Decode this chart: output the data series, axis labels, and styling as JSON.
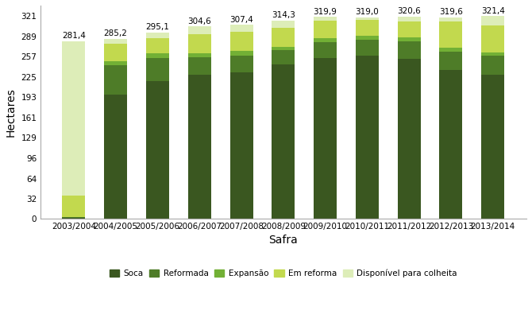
{
  "categories": [
    "2003/2004",
    "2004/2005",
    "2005/2006",
    "2006/2007",
    "2007/2008",
    "2008/2009",
    "2009/2010",
    "2010/2011",
    "2011/2012",
    "2012/2013",
    "2013/2014"
  ],
  "totals": [
    281.4,
    285.2,
    295.1,
    304.6,
    307.4,
    314.3,
    319.9,
    319.0,
    320.6,
    319.6,
    321.4
  ],
  "soca": [
    2.0,
    197.0,
    218.0,
    229.0,
    232.0,
    245.0,
    255.0,
    258.0,
    254.0,
    236.0,
    228.0
  ],
  "reformada": [
    0.5,
    47.0,
    37.0,
    27.0,
    27.0,
    22.0,
    25.0,
    26.0,
    27.0,
    29.0,
    30.0
  ],
  "expansao": [
    0.5,
    6.0,
    7.0,
    7.0,
    7.0,
    6.0,
    6.0,
    6.0,
    6.0,
    6.0,
    6.0
  ],
  "em_reforma": [
    34.0,
    27.5,
    24.5,
    30.0,
    30.0,
    30.0,
    28.0,
    25.0,
    26.0,
    42.0,
    42.0
  ],
  "disponivel": [
    244.4,
    7.7,
    8.6,
    11.6,
    11.4,
    11.3,
    5.9,
    4.0,
    7.6,
    6.6,
    15.4
  ],
  "colors": {
    "soca": "#3a5720",
    "reformada": "#4e7c28",
    "expansao": "#72b035",
    "em_reforma": "#c2d94e",
    "disponivel": "#ddedb8"
  },
  "legend_labels": [
    "Soca",
    "Reformada",
    "Expansão",
    "Em reforma",
    "Disponível para colheita"
  ],
  "ylabel": "Hectares",
  "xlabel": "Safra",
  "yticks": [
    0,
    32,
    64,
    96,
    129,
    161,
    193,
    225,
    257,
    289,
    321
  ],
  "ylim": [
    0,
    338
  ],
  "bar_width": 0.55,
  "background_color": "#ffffff",
  "tick_label_fontsize": 7.5,
  "axis_label_fontsize": 10,
  "value_fontsize": 7.5
}
